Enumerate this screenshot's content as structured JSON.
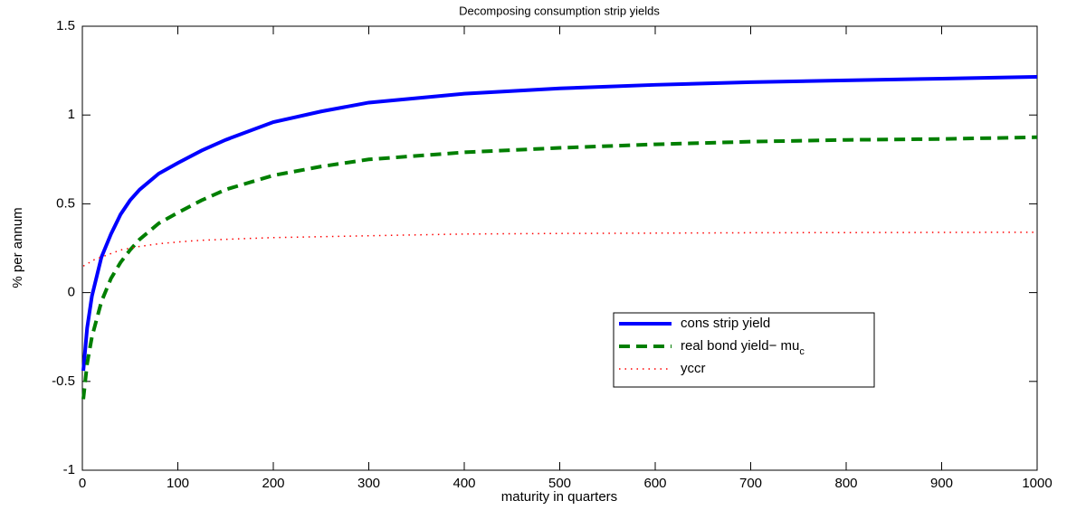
{
  "chart_data": {
    "type": "line",
    "title": "Decomposing consumption strip yields",
    "xlabel": "maturity in quarters",
    "ylabel": "% per annum",
    "x": [
      1,
      5,
      10,
      20,
      30,
      40,
      50,
      60,
      80,
      100,
      125,
      150,
      200,
      250,
      300,
      400,
      500,
      600,
      700,
      800,
      900,
      1000
    ],
    "series": [
      {
        "name": "cons strip yield",
        "color": "#0000ff",
        "style": "solid",
        "values": [
          -0.44,
          -0.2,
          -0.02,
          0.2,
          0.33,
          0.44,
          0.52,
          0.58,
          0.67,
          0.73,
          0.8,
          0.86,
          0.96,
          1.02,
          1.07,
          1.12,
          1.15,
          1.17,
          1.185,
          1.195,
          1.205,
          1.215
        ]
      },
      {
        "name": "real bond yield− mu",
        "name_subscript": "c",
        "color": "#007f00",
        "style": "dashed",
        "values": [
          -0.6,
          -0.4,
          -0.25,
          -0.05,
          0.08,
          0.17,
          0.24,
          0.3,
          0.39,
          0.45,
          0.52,
          0.58,
          0.66,
          0.71,
          0.75,
          0.79,
          0.815,
          0.835,
          0.85,
          0.86,
          0.865,
          0.875
        ]
      },
      {
        "name": "yccr",
        "color": "#ff0000",
        "style": "dotted",
        "values": [
          0.15,
          0.16,
          0.18,
          0.2,
          0.22,
          0.24,
          0.25,
          0.26,
          0.275,
          0.285,
          0.295,
          0.3,
          0.31,
          0.315,
          0.32,
          0.33,
          0.333,
          0.335,
          0.337,
          0.338,
          0.339,
          0.34
        ]
      }
    ],
    "xlim": [
      0,
      1000
    ],
    "xticks": [
      0,
      100,
      200,
      300,
      400,
      500,
      600,
      700,
      800,
      900,
      1000
    ],
    "ylim": [
      -1,
      1.5
    ],
    "yticks": [
      -1,
      -0.5,
      0,
      0.5,
      1,
      1.5
    ],
    "grid": false
  }
}
